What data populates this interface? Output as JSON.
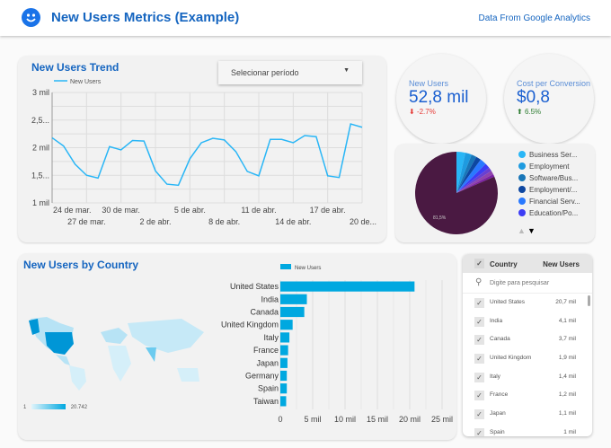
{
  "header": {
    "title": "New Users Metrics (Example)",
    "source_link": "Data From Google Analytics",
    "logo_icon": "smiley-icon"
  },
  "trend": {
    "title": "New Users Trend",
    "legend": "New Users",
    "period_select": "Selecionar período",
    "y_ticks": [
      "3 mil",
      "2,5...",
      "2 mil",
      "1,5...",
      "1 mil"
    ],
    "x_ticks": [
      "24 de mar.",
      "27 de mar.",
      "30 de mar.",
      "2 de abr.",
      "5 de abr.",
      "8 de abr.",
      "11 de abr.",
      "14 de abr.",
      "17 de abr.",
      "20 de..."
    ]
  },
  "kpis": [
    {
      "label": "New Users",
      "value": "52,8 mil",
      "delta": "-2.7%",
      "direction": "down",
      "color": "#e53935"
    },
    {
      "label": "Cost per Conversion",
      "value": "$0,8",
      "delta": "6.5%",
      "direction": "up",
      "color": "#2e7d32"
    }
  ],
  "pie": {
    "center_label": "81,5%",
    "legend": [
      {
        "label": "Business Ser...",
        "color": "#29b6f6"
      },
      {
        "label": "Employment",
        "color": "#1e9be0"
      },
      {
        "label": "Software/Bus...",
        "color": "#1976b8"
      },
      {
        "label": "Employment/...",
        "color": "#0d47a1"
      },
      {
        "label": "Financial Serv...",
        "color": "#2979ff"
      },
      {
        "label": "Education/Po...",
        "color": "#3d3df5"
      }
    ],
    "main_color": "#4a1942"
  },
  "country": {
    "title": "New Users by Country",
    "legend": "New Users",
    "map_min": "1",
    "map_max": "20.742",
    "x_ticks": [
      "0",
      "5 mil",
      "10 mil",
      "15 mil",
      "20 mil",
      "25 mil"
    ]
  },
  "chart_data": [
    {
      "type": "line",
      "title": "New Users Trend",
      "series": [
        {
          "name": "New Users",
          "values": [
            2180,
            2030,
            1700,
            1500,
            1450,
            2020,
            1960,
            2130,
            2120,
            1580,
            1340,
            1320,
            1800,
            2090,
            2170,
            2140,
            1930,
            1570,
            1490,
            2150,
            2150,
            2090,
            2220,
            2200,
            1490,
            1460,
            2430,
            2370
          ]
        }
      ],
      "x_start": "24 de mar.",
      "x_end": "20 de abr.",
      "ylim": [
        1000,
        3000
      ],
      "grid": true,
      "legend": "top-left"
    },
    {
      "type": "bar",
      "orientation": "horizontal",
      "categories": [
        "United States",
        "India",
        "Canada",
        "United Kingdom",
        "Italy",
        "France",
        "Japan",
        "Germany",
        "Spain",
        "Taiwan"
      ],
      "series": [
        {
          "name": "New Users",
          "values": [
            20742,
            4100,
            3700,
            1900,
            1400,
            1200,
            1100,
            1000,
            1000,
            900
          ]
        }
      ],
      "xlim": [
        0,
        25000
      ],
      "color": "#00a8e0"
    }
  ],
  "table": {
    "col_country": "Country",
    "col_users": "New Users",
    "search_placeholder": "Digite para pesquisar",
    "rows": [
      {
        "country": "United States",
        "users": "20,7 mil"
      },
      {
        "country": "India",
        "users": "4,1 mil"
      },
      {
        "country": "Canada",
        "users": "3,7 mil"
      },
      {
        "country": "United Kingdom",
        "users": "1,9 mil"
      },
      {
        "country": "Italy",
        "users": "1,4 mil"
      },
      {
        "country": "France",
        "users": "1,2 mil"
      },
      {
        "country": "Japan",
        "users": "1,1 mil"
      },
      {
        "country": "Spain",
        "users": "1 mil"
      }
    ]
  }
}
